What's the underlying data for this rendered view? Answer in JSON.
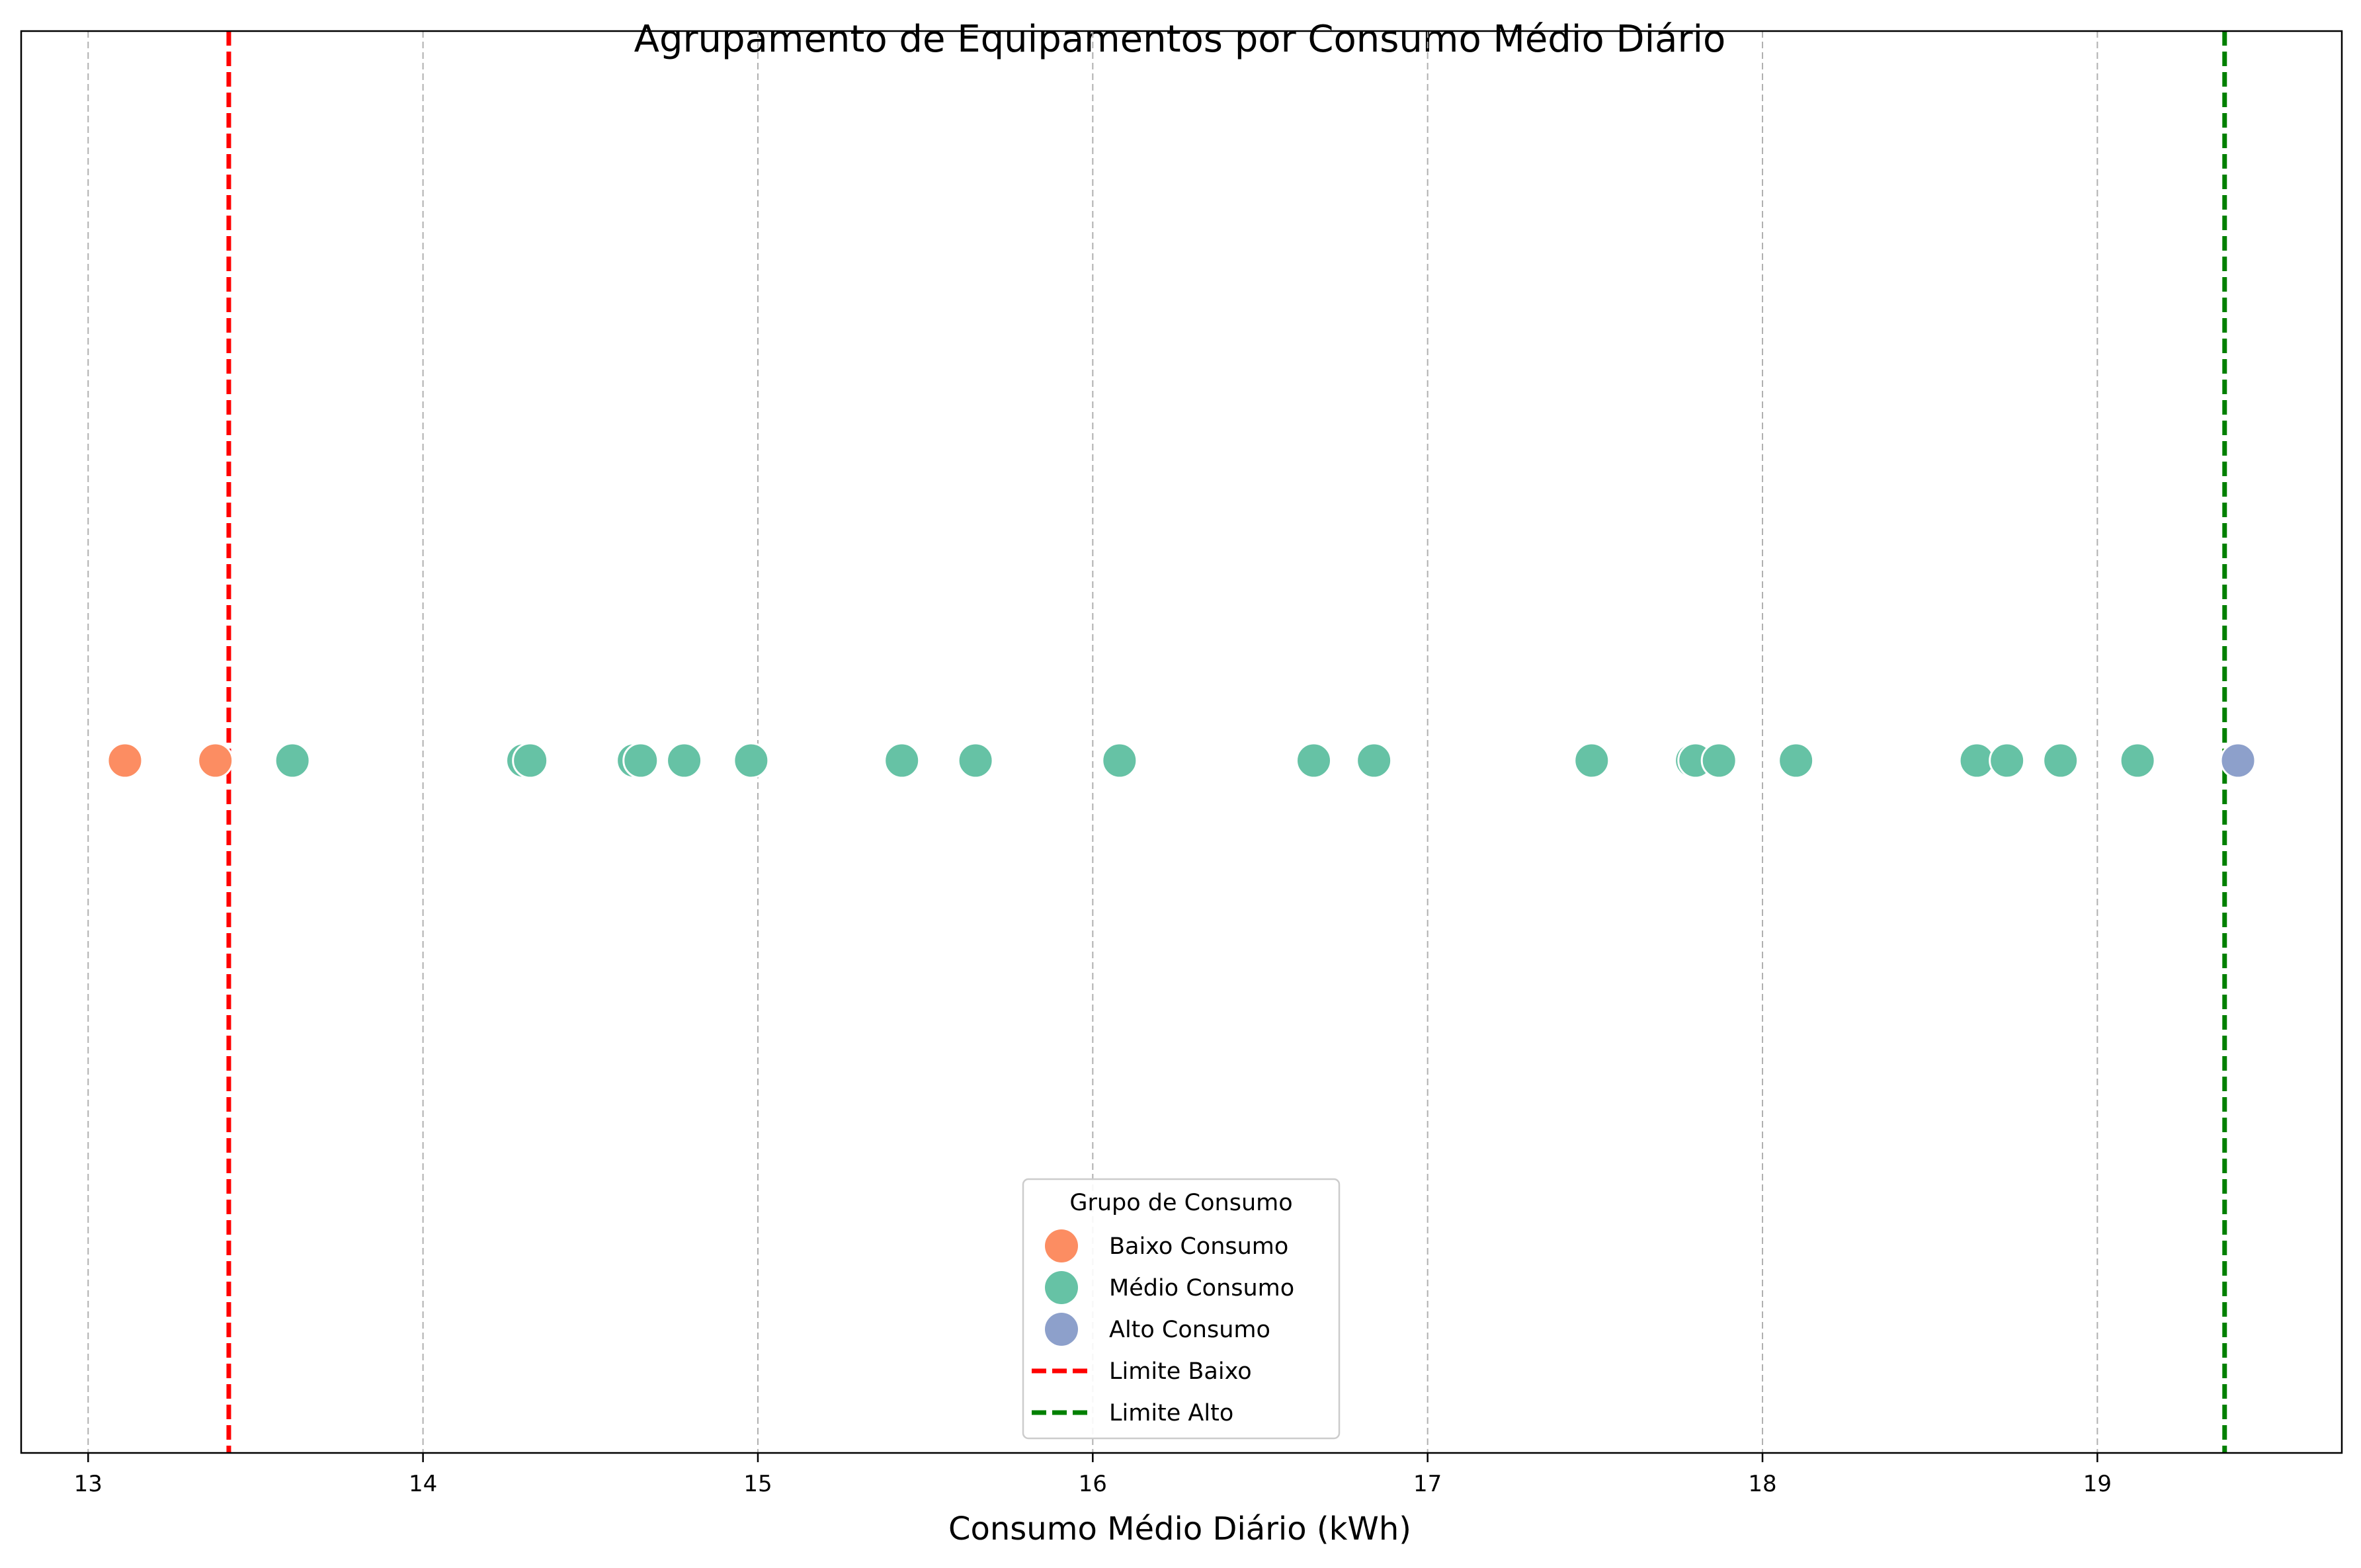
{
  "chart_data": {
    "type": "scatter",
    "title": "Agrupamento de Equipamentos por Consumo Médio Diário",
    "xlabel": "Consumo Médio Diário (kWh)",
    "ylabel": "",
    "xlim": [
      12.8,
      19.73
    ],
    "xticks": [
      13,
      14,
      15,
      16,
      17,
      18,
      19
    ],
    "grid": "x-dashed",
    "legend": {
      "title": "Grupo de Consumo",
      "placement": "lower-center",
      "entries": [
        "Baixo Consumo",
        "Médio Consumo",
        "Alto Consumo",
        "Limite Baixo",
        "Limite Alto"
      ]
    },
    "series": [
      {
        "name": "Baixo Consumo",
        "color": "#fc8d62",
        "x": [
          13.11,
          13.38
        ]
      },
      {
        "name": "Médio Consumo",
        "color": "#66c2a5",
        "x": [
          13.61,
          14.3,
          14.32,
          14.63,
          14.65,
          14.78,
          14.98,
          15.43,
          15.65,
          16.08,
          16.66,
          16.84,
          17.49,
          17.79,
          17.8,
          17.87,
          18.1,
          18.64,
          18.73,
          18.89,
          19.12
        ]
      },
      {
        "name": "Alto Consumo",
        "color": "#8da0cb",
        "x": [
          19.42
        ]
      }
    ],
    "reference_lines": [
      {
        "name": "Limite Baixo",
        "x": 13.42,
        "color": "#ff0000",
        "style": "dashed"
      },
      {
        "name": "Limite Alto",
        "x": 19.38,
        "color": "#008000",
        "style": "dashed"
      }
    ]
  }
}
